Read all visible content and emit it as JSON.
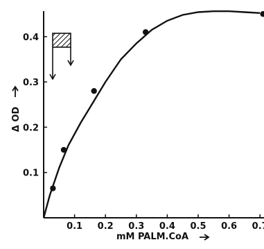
{
  "chart_data": {
    "type": "scatter",
    "title": "",
    "xlabel": "mM PALM.CoA",
    "ylabel": "Δ OD",
    "xlim": [
      0,
      0.7
    ],
    "ylim": [
      0,
      0.45
    ],
    "xticks": [
      {
        "value": 0.1,
        "label": "0.1"
      },
      {
        "value": 0.2,
        "label": "0.2"
      },
      {
        "value": 0.3,
        "label": "0.3"
      },
      {
        "value": 0.4,
        "label": "0.4"
      },
      {
        "value": 0.5,
        "label": "0.5"
      },
      {
        "value": 0.6,
        "label": "0.6"
      },
      {
        "value": 0.7,
        "label": "0.7"
      }
    ],
    "yticks": [
      {
        "value": 0.1,
        "label": "0.1"
      },
      {
        "value": 0.2,
        "label": "0.2"
      },
      {
        "value": 0.3,
        "label": "0.3"
      },
      {
        "value": 0.4,
        "label": "0.4"
      }
    ],
    "points": {
      "x": [
        0.03,
        0.065,
        0.163,
        0.33,
        0.71
      ],
      "y": [
        0.065,
        0.15,
        0.28,
        0.41,
        0.45
      ]
    },
    "fit_curve": {
      "x": [
        0.0,
        0.02,
        0.05,
        0.08,
        0.12,
        0.16,
        0.2,
        0.25,
        0.3,
        0.35,
        0.4,
        0.45,
        0.5,
        0.55,
        0.6,
        0.65,
        0.7
      ],
      "y": [
        0.0,
        0.05,
        0.11,
        0.16,
        0.21,
        0.255,
        0.3,
        0.35,
        0.385,
        0.415,
        0.435,
        0.448,
        0.454,
        0.456,
        0.456,
        0.454,
        0.452
      ]
    },
    "grid": false,
    "legend": "none",
    "inset": "hatched-bar-with-down-arrows"
  }
}
